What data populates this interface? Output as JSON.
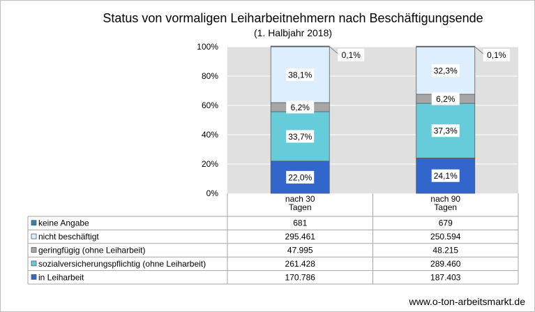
{
  "title": "Status von vormaligen Leiharbeitnehmern nach Beschäftigungsende",
  "subtitle": "(1. Halbjahr 2018)",
  "footer": "www.o-ton-arbeitsmarkt.de",
  "chart_data": {
    "type": "bar",
    "stacked": true,
    "percent": true,
    "categories": [
      "nach 30\nTagen",
      "nach 90\nTagen"
    ],
    "ylim": [
      0,
      100
    ],
    "yticks": [
      "0%",
      "20%",
      "40%",
      "60%",
      "80%",
      "100%"
    ],
    "series": [
      {
        "name": "in Leiharbeit",
        "color": "#3366cc",
        "values": [
          22.0,
          24.1
        ],
        "labels": [
          "22,0%",
          "24,1%"
        ],
        "table": [
          "170.786",
          "187.403"
        ]
      },
      {
        "name": "sozialversicherungspflichtig (ohne Leiharbeit)",
        "color": "#66ccd9",
        "values": [
          33.7,
          37.3
        ],
        "labels": [
          "33,7%",
          "37,3%"
        ],
        "table": [
          "261.428",
          "289.460"
        ]
      },
      {
        "name": "geringfügig (ohne Leiharbeit)",
        "color": "#a6a6a6",
        "values": [
          6.2,
          6.2
        ],
        "labels": [
          "6,2%",
          "6,2%"
        ],
        "table": [
          "47.995",
          "48.215"
        ]
      },
      {
        "name": "nicht beschäftigt",
        "color": "#ddeeff",
        "values": [
          38.1,
          32.3
        ],
        "labels": [
          "38,1%",
          "32,3%"
        ],
        "table": [
          "295.461",
          "250.594"
        ]
      },
      {
        "name": "keine Angabe",
        "color": "#2e86a6",
        "values": [
          0.1,
          0.1
        ],
        "labels": [
          "0,1%",
          "0,1%"
        ],
        "table": [
          "681",
          "679"
        ]
      }
    ],
    "grid": true,
    "legend": "data-table"
  }
}
